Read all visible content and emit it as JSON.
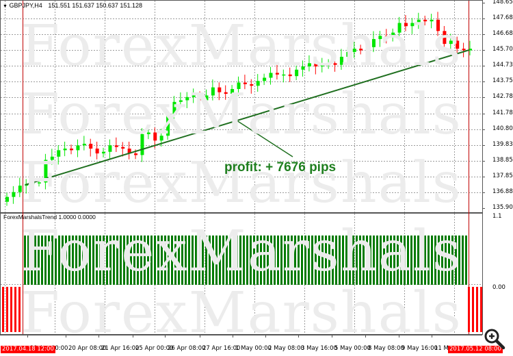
{
  "window": {
    "symbol_label": "GBPJPY,H4",
    "ohlc": "151.551 151.637 150.637 151.128",
    "indicator_label": "ForexMarshalsTrend 1.0000 0.0000"
  },
  "annotation": {
    "profit_text": "profit: + 7676 pips"
  },
  "watermark": {
    "text": "ForexMarshals"
  },
  "colors": {
    "bull": "#00e600",
    "bear": "#ff0000",
    "trendline": "#1f6f1f",
    "histogram_up": "#007a00",
    "histogram_down": "#ff0000",
    "marker_line": "#c00000",
    "grid": "#9a9a9a"
  },
  "time_tags": {
    "start": "2017.04.18 12:00",
    "end": "2017.05.12 08:00"
  },
  "chart_data": {
    "type": "candlestick",
    "title": "GBPJPY,H4",
    "price_axis": {
      "ticks": [
        "148.655",
        "147.680",
        "146.680",
        "145.705",
        "144.730",
        "143.755",
        "142.780",
        "141.780",
        "140.805",
        "139.830",
        "138.855",
        "137.855",
        "136.880",
        "135.905"
      ],
      "ylim": [
        135.905,
        148.655
      ]
    },
    "time_axis": {
      "ticks": [
        "2017.04.18 12:00",
        "19 Apr 00:00",
        "20 Apr 08:00",
        "21 Apr 16:00",
        "25 Apr 00:00",
        "26 Apr 08:00",
        "27 Apr 16:00",
        "1 May 00:00",
        "2 May 08:00",
        "3 May 16:00",
        "5 May 00:00",
        "8 May 08:00",
        "9 May 16:00",
        "11 May",
        "2017.05.12 08:00"
      ]
    },
    "trendline": {
      "from": {
        "time": "2017.04.18 12:00",
        "price": 138.5
      },
      "to": {
        "time": "2017.05.12 08:00",
        "price": 145.9
      },
      "label": "profit: + 7676 pips",
      "pips": 7676
    },
    "indicator": {
      "name": "ForexMarshalsTrend",
      "values": [
        1.0,
        0.0
      ],
      "axis_ticks": [
        "1.1",
        "0.00"
      ],
      "segments": [
        {
          "from": "start",
          "to": "2017.04.18 12:00",
          "state": "down",
          "bars": 5
        },
        {
          "from": "2017.04.18 12:00",
          "to": "2017.05.12 08:00",
          "state": "up",
          "bars": 130
        },
        {
          "from": "2017.05.12 08:00",
          "to": "end",
          "state": "down",
          "bars": 5
        }
      ]
    },
    "candles_approx_close": [
      136.6,
      136.9,
      137.3,
      137.4,
      137.5,
      137.5,
      138.9,
      139.1,
      139.5,
      139.6,
      139.5,
      139.8,
      139.9,
      139.6,
      139.3,
      139.4,
      139.8,
      139.7,
      139.6,
      139.3,
      139.2,
      140.5,
      140.6,
      140.1,
      140.4,
      141.7,
      142.5,
      142.6,
      142.8,
      142.9,
      142.6,
      142.9,
      143.4,
      143.1,
      143.0,
      143.3,
      143.7,
      143.6,
      143.5,
      143.8,
      144.0,
      144.3,
      144.2,
      144.2,
      144.1,
      144.5,
      144.7,
      144.9,
      144.7,
      144.8,
      144.9,
      144.8,
      145.3,
      145.6,
      145.8,
      145.7,
      145.9,
      146.4,
      146.6,
      146.5,
      146.8,
      147.4,
      147.2,
      147.4,
      147.6,
      147.5,
      147.6,
      146.9,
      146.1,
      146.3,
      145.8,
      145.7,
      145.8
    ]
  }
}
